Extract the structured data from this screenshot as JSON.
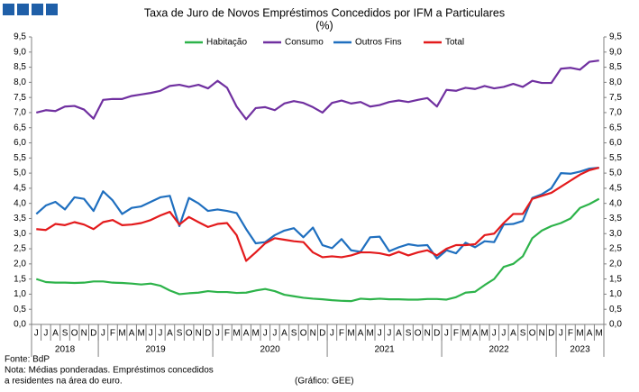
{
  "chart_data": {
    "type": "line",
    "title": "Taxa de Juro de Novos Empréstimos Concedidos por IFM a Particulares",
    "subtitle": "(%)",
    "categories": [
      "J",
      "J",
      "A",
      "S",
      "O",
      "N",
      "D",
      "J",
      "F",
      "M",
      "A",
      "M",
      "J",
      "J",
      "A",
      "S",
      "O",
      "N",
      "D",
      "J",
      "F",
      "M",
      "A",
      "M",
      "J",
      "J",
      "A",
      "S",
      "O",
      "N",
      "D",
      "J",
      "F",
      "M",
      "A",
      "M",
      "J",
      "J",
      "A",
      "S",
      "O",
      "N",
      "D",
      "J",
      "F",
      "M",
      "A",
      "M",
      "J",
      "J",
      "A",
      "S",
      "O",
      "N",
      "D",
      "J",
      "F",
      "M",
      "A",
      "M"
    ],
    "years": [
      "2018",
      "2019",
      "2020",
      "2021",
      "2022",
      "2023"
    ],
    "series": [
      {
        "name": "Habitação",
        "color": "#2db34a",
        "values": [
          1.5,
          1.4,
          1.38,
          1.38,
          1.37,
          1.38,
          1.42,
          1.42,
          1.38,
          1.37,
          1.35,
          1.32,
          1.35,
          1.28,
          1.12,
          1.0,
          1.03,
          1.05,
          1.1,
          1.07,
          1.07,
          1.04,
          1.05,
          1.12,
          1.17,
          1.1,
          0.98,
          0.93,
          0.88,
          0.85,
          0.83,
          0.8,
          0.78,
          0.77,
          0.85,
          0.83,
          0.85,
          0.83,
          0.83,
          0.82,
          0.82,
          0.84,
          0.84,
          0.82,
          0.9,
          1.05,
          1.08,
          1.3,
          1.5,
          1.9,
          2.0,
          2.25,
          2.85,
          3.1,
          3.25,
          3.35,
          3.5,
          3.85,
          3.98,
          4.15
        ]
      },
      {
        "name": "Consumo",
        "color": "#7030a0",
        "values": [
          7.0,
          7.08,
          7.05,
          7.2,
          7.22,
          7.1,
          6.8,
          7.42,
          7.45,
          7.45,
          7.55,
          7.6,
          7.65,
          7.72,
          7.88,
          7.92,
          7.85,
          7.92,
          7.8,
          8.05,
          7.82,
          7.2,
          6.78,
          7.15,
          7.18,
          7.08,
          7.3,
          7.38,
          7.32,
          7.18,
          7.0,
          7.32,
          7.4,
          7.3,
          7.35,
          7.2,
          7.25,
          7.35,
          7.4,
          7.35,
          7.42,
          7.48,
          7.2,
          7.75,
          7.72,
          7.82,
          7.78,
          7.88,
          7.8,
          7.85,
          7.95,
          7.85,
          8.05,
          7.98,
          7.98,
          8.45,
          8.48,
          8.42,
          8.68,
          8.72
        ]
      },
      {
        "name": "Outros Fins",
        "color": "#1f6fbf",
        "values": [
          3.65,
          3.93,
          4.05,
          3.8,
          4.2,
          4.15,
          3.75,
          4.4,
          4.1,
          3.65,
          3.85,
          3.9,
          4.05,
          4.2,
          4.25,
          3.25,
          4.18,
          4.0,
          3.75,
          3.8,
          3.75,
          3.68,
          3.15,
          2.68,
          2.72,
          2.95,
          3.1,
          3.18,
          2.88,
          3.2,
          2.62,
          2.52,
          2.82,
          2.45,
          2.4,
          2.88,
          2.9,
          2.42,
          2.55,
          2.65,
          2.6,
          2.62,
          2.18,
          2.45,
          2.35,
          2.7,
          2.55,
          2.75,
          2.72,
          3.3,
          3.32,
          3.42,
          4.18,
          4.3,
          4.5,
          5.0,
          4.98,
          5.05,
          5.15,
          5.18
        ]
      },
      {
        "name": "Total",
        "color": "#e31a1c",
        "values": [
          3.15,
          3.12,
          3.32,
          3.28,
          3.38,
          3.3,
          3.15,
          3.38,
          3.45,
          3.28,
          3.3,
          3.35,
          3.45,
          3.6,
          3.72,
          3.3,
          3.55,
          3.38,
          3.22,
          3.32,
          3.35,
          2.95,
          2.1,
          2.38,
          2.68,
          2.85,
          2.8,
          2.75,
          2.72,
          2.38,
          2.22,
          2.25,
          2.22,
          2.28,
          2.38,
          2.38,
          2.35,
          2.28,
          2.4,
          2.28,
          2.38,
          2.45,
          2.28,
          2.5,
          2.62,
          2.62,
          2.65,
          2.95,
          3.0,
          3.35,
          3.65,
          3.65,
          4.15,
          4.25,
          4.35,
          4.55,
          4.75,
          4.95,
          5.1,
          5.18
        ]
      }
    ],
    "ylim": [
      0,
      9.5
    ],
    "yticks": [
      {
        "value": 0,
        "label": "0,0"
      },
      {
        "value": 0.5,
        "label": "0,5"
      },
      {
        "value": 1,
        "label": "1,0"
      },
      {
        "value": 1.5,
        "label": "1,5"
      },
      {
        "value": 2,
        "label": "2,0"
      },
      {
        "value": 2.5,
        "label": "2,5"
      },
      {
        "value": 3,
        "label": "3,0"
      },
      {
        "value": 3.5,
        "label": "3,5"
      },
      {
        "value": 4,
        "label": "4,0"
      },
      {
        "value": 4.5,
        "label": "4,5"
      },
      {
        "value": 5,
        "label": "5,0"
      },
      {
        "value": 5.5,
        "label": "5,5"
      },
      {
        "value": 6,
        "label": "6,0"
      },
      {
        "value": 6.5,
        "label": "6,5"
      },
      {
        "value": 7,
        "label": "7,0"
      },
      {
        "value": 7.5,
        "label": "7,5"
      },
      {
        "value": 8,
        "label": "8,0"
      },
      {
        "value": 8.5,
        "label": "8,5"
      },
      {
        "value": 9,
        "label": "9,0"
      },
      {
        "value": 9.5,
        "label": "9,5"
      }
    ],
    "y2lim": [
      0,
      9.5
    ],
    "y2ticks": [
      {
        "value": 0,
        "label": "0,0"
      },
      {
        "value": 0.5,
        "label": "0,5"
      },
      {
        "value": 1,
        "label": "1,0"
      },
      {
        "value": 1.5,
        "label": "1,5"
      },
      {
        "value": 2,
        "label": "2,0"
      },
      {
        "value": 2.5,
        "label": "2,5"
      },
      {
        "value": 3,
        "label": "3,0"
      },
      {
        "value": 3.5,
        "label": "3,5"
      },
      {
        "value": 4,
        "label": "4,0"
      },
      {
        "value": 4.5,
        "label": "4,5"
      },
      {
        "value": 5,
        "label": "5,0"
      },
      {
        "value": 5.5,
        "label": "5,5"
      },
      {
        "value": 6,
        "label": "6,0"
      },
      {
        "value": 6.5,
        "label": "6,5"
      },
      {
        "value": 7,
        "label": "7,0"
      },
      {
        "value": 7.5,
        "label": "7,5"
      },
      {
        "value": 8,
        "label": "8,0"
      },
      {
        "value": 8.5,
        "label": "8,5"
      },
      {
        "value": 9,
        "label": "9,0"
      },
      {
        "value": 9.5,
        "label": "9,5"
      }
    ],
    "grid": false,
    "legend": "top",
    "notes": [
      "Fonte: BdP",
      "Nota: Médias ponderadas. Empréstimos concedidos",
      "a residentes na área do euro."
    ],
    "credit": "(Gráfico: GEE)"
  }
}
